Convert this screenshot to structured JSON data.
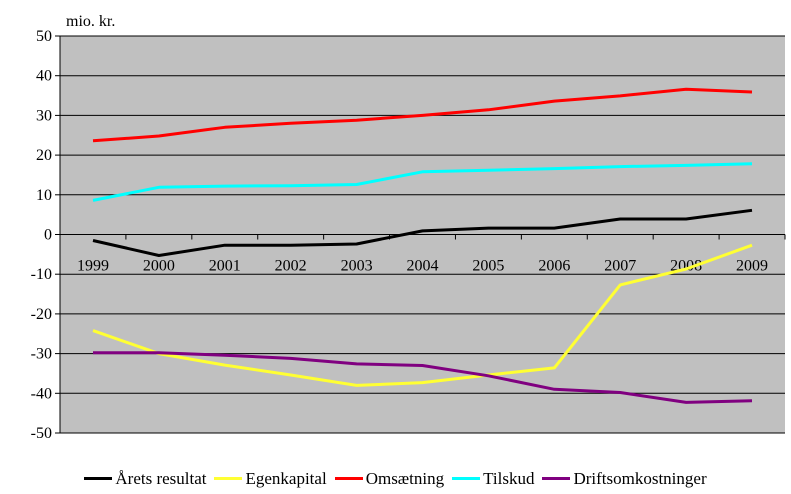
{
  "chart_data": {
    "type": "line",
    "unit_label": "mio. kr.",
    "categories": [
      "1999",
      "2000",
      "2001",
      "2002",
      "2003",
      "2004",
      "2005",
      "2006",
      "2007",
      "2008",
      "2009"
    ],
    "ylim": [
      -50,
      50
    ],
    "yticks": [
      "50",
      "40",
      "30",
      "20",
      "10",
      "0",
      "-10",
      "-20",
      "-30",
      "-40",
      "-50"
    ],
    "grid": true,
    "legend_position": "bottom",
    "series": [
      {
        "name": "Årets resultat",
        "color": "#000000",
        "values": [
          -1.5,
          -5.3,
          -2.7,
          -2.7,
          -2.4,
          0.9,
          1.6,
          1.6,
          3.9,
          3.9,
          6.1
        ]
      },
      {
        "name": "Egenkapital",
        "color": "#ffff33",
        "values": [
          -24.2,
          -30.0,
          -32.9,
          -35.4,
          -38.0,
          -37.3,
          -35.4,
          -33.6,
          -12.7,
          -8.7,
          -2.7
        ]
      },
      {
        "name": "Omsætning",
        "color": "#ff0000",
        "values": [
          23.6,
          24.8,
          27.0,
          28.0,
          28.8,
          30.0,
          31.4,
          33.6,
          34.9,
          36.6,
          35.9
        ]
      },
      {
        "name": "Tilskud",
        "color": "#00ffff",
        "values": [
          8.6,
          11.9,
          12.2,
          12.3,
          12.6,
          15.8,
          16.2,
          16.6,
          17.1,
          17.4,
          17.8
        ]
      },
      {
        "name": "Driftsomkostninger",
        "color": "#800080",
        "values": [
          -29.8,
          -29.8,
          -30.4,
          -31.2,
          -32.6,
          -33.0,
          -35.6,
          -39.0,
          -39.8,
          -42.3,
          -41.9
        ]
      }
    ]
  }
}
